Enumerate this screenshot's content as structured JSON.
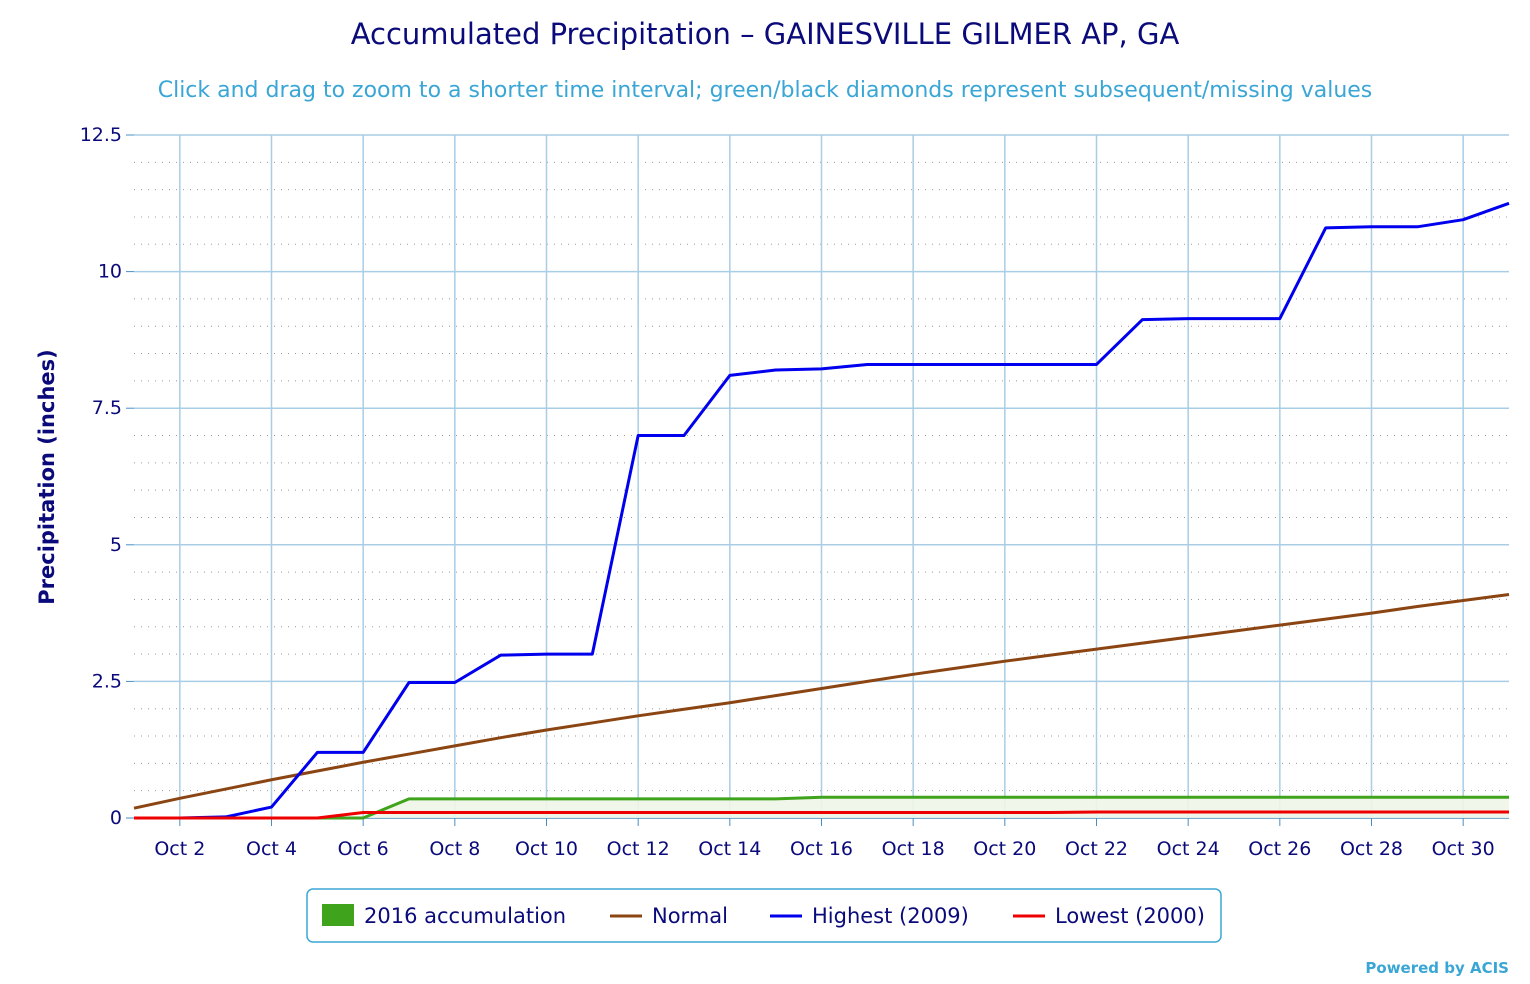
{
  "chart_data": {
    "type": "line",
    "title": "Accumulated Precipitation – GAINESVILLE GILMER AP, GA",
    "subtitle": "Click and drag to zoom to a shorter time interval; green/black diamonds represent subsequent/missing values",
    "xlabel": "",
    "ylabel": "Precipitation (inches)",
    "ylim": [
      0,
      12.5
    ],
    "yticks": [
      "0",
      "2.5",
      "5",
      "7.5",
      "10",
      "12.5"
    ],
    "xlim": [
      1,
      31
    ],
    "xticks": [
      {
        "day": 2,
        "label": "Oct 2"
      },
      {
        "day": 4,
        "label": "Oct 4"
      },
      {
        "day": 6,
        "label": "Oct 6"
      },
      {
        "day": 8,
        "label": "Oct 8"
      },
      {
        "day": 10,
        "label": "Oct 10"
      },
      {
        "day": 12,
        "label": "Oct 12"
      },
      {
        "day": 14,
        "label": "Oct 14"
      },
      {
        "day": 16,
        "label": "Oct 16"
      },
      {
        "day": 18,
        "label": "Oct 18"
      },
      {
        "day": 20,
        "label": "Oct 20"
      },
      {
        "day": 22,
        "label": "Oct 22"
      },
      {
        "day": 24,
        "label": "Oct 24"
      },
      {
        "day": 26,
        "label": "Oct 26"
      },
      {
        "day": 28,
        "label": "Oct 28"
      },
      {
        "day": 30,
        "label": "Oct 30"
      }
    ],
    "grid": true,
    "legend_position": "bottom-center",
    "x": [
      1,
      2,
      3,
      4,
      5,
      6,
      7,
      8,
      9,
      10,
      11,
      12,
      13,
      14,
      15,
      16,
      17,
      18,
      19,
      20,
      21,
      22,
      23,
      24,
      25,
      26,
      27,
      28,
      29,
      30,
      31
    ],
    "series": [
      {
        "name": "2016 accumulation",
        "color": "#3fa31c",
        "kind": "area",
        "values": [
          0,
          0,
          0,
          0,
          0,
          0,
          0.35,
          0.35,
          0.35,
          0.35,
          0.35,
          0.35,
          0.35,
          0.35,
          0.35,
          0.38,
          0.38,
          0.38,
          0.38,
          0.38,
          0.38,
          0.38,
          0.38,
          0.38,
          0.38,
          0.38,
          0.38,
          0.38,
          0.38,
          0.38,
          0.38
        ]
      },
      {
        "name": "Normal",
        "color": "#8b4513",
        "kind": "line",
        "values": [
          0.18,
          0.36,
          0.53,
          0.7,
          0.86,
          1.02,
          1.17,
          1.32,
          1.47,
          1.61,
          1.74,
          1.87,
          1.99,
          2.11,
          2.24,
          2.37,
          2.5,
          2.63,
          2.75,
          2.87,
          2.98,
          3.09,
          3.2,
          3.31,
          3.42,
          3.53,
          3.64,
          3.75,
          3.87,
          3.98,
          4.09
        ]
      },
      {
        "name": "Highest (2009)",
        "color": "#0000ee",
        "kind": "line",
        "values": [
          0,
          0,
          0.02,
          0.2,
          1.2,
          1.2,
          2.48,
          2.48,
          2.98,
          3.0,
          3.0,
          7.0,
          7.0,
          8.1,
          8.2,
          8.22,
          8.3,
          8.3,
          8.3,
          8.3,
          8.3,
          8.3,
          9.12,
          9.14,
          9.14,
          9.14,
          10.8,
          10.82,
          10.82,
          10.95,
          11.25
        ]
      },
      {
        "name": "Lowest (2000)",
        "color": "#ee0000",
        "kind": "line",
        "values": [
          0,
          0,
          0,
          0,
          0,
          0.1,
          0.1,
          0.1,
          0.1,
          0.1,
          0.1,
          0.1,
          0.1,
          0.1,
          0.1,
          0.1,
          0.1,
          0.1,
          0.1,
          0.1,
          0.1,
          0.11,
          0.11,
          0.11,
          0.11,
          0.11,
          0.11,
          0.11,
          0.11,
          0.11,
          0.11
        ]
      }
    ]
  },
  "footer": {
    "credit": "Powered by ACIS"
  }
}
